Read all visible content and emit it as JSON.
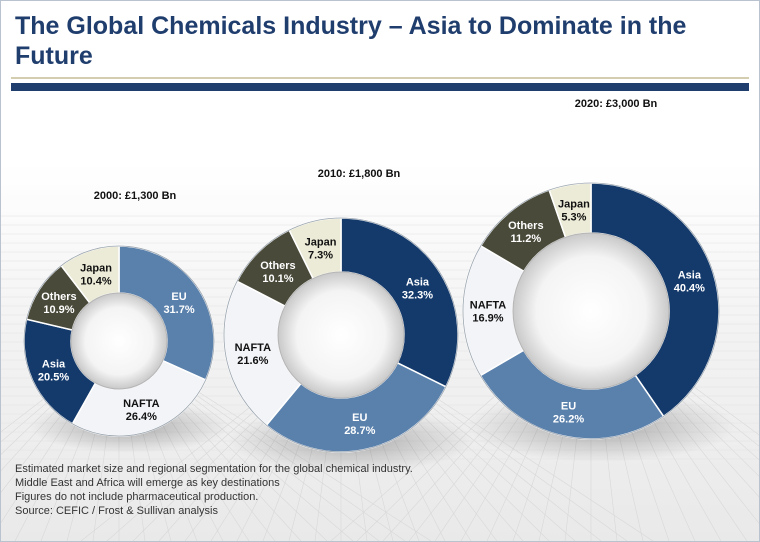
{
  "slide": {
    "title": "The Global Chemicals Industry – Asia to Dominate in the Future"
  },
  "colors": {
    "title_navy": "#1f3d6d",
    "Asia": "#143a6c",
    "EU": "#5a80ac",
    "NAFTA": "#f3f4f8",
    "Others": "#4a4a3a",
    "Japan": "#ecebd7"
  },
  "chart_data": [
    {
      "type": "donut",
      "title": "2000: £1,300 Bn",
      "segments": [
        {
          "name": "EU",
          "value": 31.7,
          "label": "31.7%"
        },
        {
          "name": "NAFTA",
          "value": 26.4,
          "label": "26.4%"
        },
        {
          "name": "Asia",
          "value": 20.5,
          "label": "20.5%"
        },
        {
          "name": "Others",
          "value": 10.9,
          "label": "10.9%"
        },
        {
          "name": "Japan",
          "value": 10.4,
          "label": "10.4%"
        }
      ]
    },
    {
      "type": "donut",
      "title": "2010: £1,800 Bn",
      "segments": [
        {
          "name": "Asia",
          "value": 32.3,
          "label": "32.3%"
        },
        {
          "name": "EU",
          "value": 28.7,
          "label": "28.7%"
        },
        {
          "name": "NAFTA",
          "value": 21.6,
          "label": "21.6%"
        },
        {
          "name": "Others",
          "value": 10.1,
          "label": "10.1%"
        },
        {
          "name": "Japan",
          "value": 7.3,
          "label": "7.3%"
        }
      ]
    },
    {
      "type": "donut",
      "title": "2020: £3,000 Bn",
      "segments": [
        {
          "name": "Asia",
          "value": 40.4,
          "label": "40.4%"
        },
        {
          "name": "EU",
          "value": 26.2,
          "label": "26.2%"
        },
        {
          "name": "NAFTA",
          "value": 16.9,
          "label": "16.9%"
        },
        {
          "name": "Others",
          "value": 11.2,
          "label": "11.2%"
        },
        {
          "name": "Japan",
          "value": 5.3,
          "label": "5.3%"
        }
      ]
    }
  ],
  "notes": [
    "Estimated market size and regional segmentation for the global chemical industry.",
    "Middle East and Africa will emerge as key destinations",
    "Figures do not include pharmaceutical production.",
    "Source: CEFIC / Frost & Sullivan analysis"
  ]
}
